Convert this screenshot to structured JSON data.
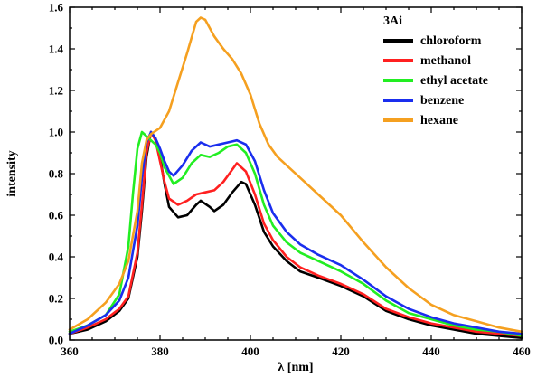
{
  "chart_data": {
    "type": "line",
    "title": "",
    "xlabel": "λ [nm]",
    "ylabel": "intensity",
    "xlim": [
      360,
      460
    ],
    "ylim": [
      0.0,
      1.6
    ],
    "x_ticks": [
      "360",
      "380",
      "400",
      "420",
      "440",
      "460"
    ],
    "y_ticks": [
      "0.0",
      "0.2",
      "0.4",
      "0.6",
      "0.8",
      "1.0",
      "1.2",
      "1.4",
      "1.6"
    ],
    "legend_title": "3Ai",
    "legend_position": "top-right",
    "grid": false,
    "series": [
      {
        "name": "chloroform",
        "color": "#000000",
        "points": [
          [
            360,
            0.03
          ],
          [
            364,
            0.05
          ],
          [
            368,
            0.09
          ],
          [
            371,
            0.14
          ],
          [
            373,
            0.2
          ],
          [
            375,
            0.4
          ],
          [
            376,
            0.62
          ],
          [
            377,
            0.88
          ],
          [
            378,
            1.0
          ],
          [
            379,
            0.97
          ],
          [
            380,
            0.88
          ],
          [
            381,
            0.75
          ],
          [
            382,
            0.64
          ],
          [
            384,
            0.59
          ],
          [
            386,
            0.6
          ],
          [
            388,
            0.65
          ],
          [
            389,
            0.67
          ],
          [
            391,
            0.64
          ],
          [
            392,
            0.62
          ],
          [
            394,
            0.65
          ],
          [
            396,
            0.71
          ],
          [
            398,
            0.76
          ],
          [
            399,
            0.75
          ],
          [
            401,
            0.65
          ],
          [
            403,
            0.52
          ],
          [
            405,
            0.45
          ],
          [
            408,
            0.38
          ],
          [
            411,
            0.33
          ],
          [
            415,
            0.3
          ],
          [
            420,
            0.26
          ],
          [
            425,
            0.21
          ],
          [
            430,
            0.14
          ],
          [
            435,
            0.1
          ],
          [
            440,
            0.07
          ],
          [
            445,
            0.05
          ],
          [
            450,
            0.03
          ],
          [
            455,
            0.02
          ],
          [
            460,
            0.01
          ]
        ]
      },
      {
        "name": "methanol",
        "color": "#ff2020",
        "points": [
          [
            360,
            0.03
          ],
          [
            364,
            0.06
          ],
          [
            368,
            0.1
          ],
          [
            371,
            0.15
          ],
          [
            373,
            0.21
          ],
          [
            375,
            0.42
          ],
          [
            376,
            0.65
          ],
          [
            377,
            0.9
          ],
          [
            378,
            1.0
          ],
          [
            379,
            0.96
          ],
          [
            380,
            0.86
          ],
          [
            381,
            0.76
          ],
          [
            382,
            0.68
          ],
          [
            384,
            0.65
          ],
          [
            386,
            0.67
          ],
          [
            388,
            0.7
          ],
          [
            390,
            0.71
          ],
          [
            392,
            0.72
          ],
          [
            394,
            0.76
          ],
          [
            396,
            0.82
          ],
          [
            397,
            0.85
          ],
          [
            399,
            0.81
          ],
          [
            401,
            0.7
          ],
          [
            403,
            0.56
          ],
          [
            405,
            0.48
          ],
          [
            408,
            0.4
          ],
          [
            411,
            0.35
          ],
          [
            415,
            0.31
          ],
          [
            420,
            0.27
          ],
          [
            425,
            0.22
          ],
          [
            430,
            0.15
          ],
          [
            435,
            0.11
          ],
          [
            440,
            0.08
          ],
          [
            445,
            0.06
          ],
          [
            450,
            0.04
          ],
          [
            455,
            0.03
          ],
          [
            460,
            0.02
          ]
        ]
      },
      {
        "name": "ethyl acetate",
        "color": "#22ee22",
        "points": [
          [
            360,
            0.04
          ],
          [
            364,
            0.07
          ],
          [
            368,
            0.12
          ],
          [
            371,
            0.22
          ],
          [
            373,
            0.45
          ],
          [
            374,
            0.7
          ],
          [
            375,
            0.92
          ],
          [
            376,
            1.0
          ],
          [
            377,
            0.98
          ],
          [
            378,
            0.96
          ],
          [
            379,
            0.94
          ],
          [
            380,
            0.9
          ],
          [
            381,
            0.83
          ],
          [
            383,
            0.75
          ],
          [
            385,
            0.78
          ],
          [
            387,
            0.85
          ],
          [
            389,
            0.89
          ],
          [
            391,
            0.88
          ],
          [
            393,
            0.9
          ],
          [
            395,
            0.93
          ],
          [
            397,
            0.94
          ],
          [
            399,
            0.9
          ],
          [
            401,
            0.8
          ],
          [
            403,
            0.65
          ],
          [
            405,
            0.55
          ],
          [
            408,
            0.47
          ],
          [
            411,
            0.42
          ],
          [
            415,
            0.38
          ],
          [
            420,
            0.33
          ],
          [
            425,
            0.27
          ],
          [
            430,
            0.19
          ],
          [
            435,
            0.13
          ],
          [
            440,
            0.1
          ],
          [
            445,
            0.07
          ],
          [
            450,
            0.05
          ],
          [
            455,
            0.04
          ],
          [
            460,
            0.02
          ]
        ]
      },
      {
        "name": "benzene",
        "color": "#1a2eee",
        "points": [
          [
            360,
            0.03
          ],
          [
            364,
            0.07
          ],
          [
            368,
            0.12
          ],
          [
            371,
            0.19
          ],
          [
            373,
            0.3
          ],
          [
            375,
            0.55
          ],
          [
            376,
            0.78
          ],
          [
            377,
            0.95
          ],
          [
            378,
            1.0
          ],
          [
            379,
            0.97
          ],
          [
            380,
            0.92
          ],
          [
            381,
            0.86
          ],
          [
            382,
            0.81
          ],
          [
            383,
            0.79
          ],
          [
            385,
            0.84
          ],
          [
            387,
            0.91
          ],
          [
            389,
            0.95
          ],
          [
            391,
            0.93
          ],
          [
            393,
            0.94
          ],
          [
            395,
            0.95
          ],
          [
            397,
            0.96
          ],
          [
            399,
            0.94
          ],
          [
            401,
            0.86
          ],
          [
            403,
            0.72
          ],
          [
            405,
            0.61
          ],
          [
            408,
            0.52
          ],
          [
            411,
            0.46
          ],
          [
            415,
            0.41
          ],
          [
            420,
            0.36
          ],
          [
            425,
            0.29
          ],
          [
            430,
            0.21
          ],
          [
            435,
            0.15
          ],
          [
            440,
            0.11
          ],
          [
            445,
            0.08
          ],
          [
            450,
            0.06
          ],
          [
            455,
            0.04
          ],
          [
            460,
            0.03
          ]
        ]
      },
      {
        "name": "hexane",
        "color": "#f5a020",
        "points": [
          [
            360,
            0.05
          ],
          [
            364,
            0.1
          ],
          [
            368,
            0.18
          ],
          [
            371,
            0.27
          ],
          [
            373,
            0.38
          ],
          [
            375,
            0.62
          ],
          [
            376,
            0.85
          ],
          [
            377,
            0.96
          ],
          [
            378,
            0.99
          ],
          [
            380,
            1.02
          ],
          [
            382,
            1.1
          ],
          [
            384,
            1.24
          ],
          [
            386,
            1.38
          ],
          [
            388,
            1.53
          ],
          [
            389,
            1.55
          ],
          [
            390,
            1.54
          ],
          [
            391,
            1.5
          ],
          [
            392,
            1.46
          ],
          [
            394,
            1.4
          ],
          [
            396,
            1.35
          ],
          [
            398,
            1.28
          ],
          [
            400,
            1.18
          ],
          [
            402,
            1.04
          ],
          [
            404,
            0.94
          ],
          [
            406,
            0.88
          ],
          [
            408,
            0.84
          ],
          [
            411,
            0.78
          ],
          [
            415,
            0.7
          ],
          [
            420,
            0.6
          ],
          [
            425,
            0.47
          ],
          [
            430,
            0.35
          ],
          [
            435,
            0.25
          ],
          [
            440,
            0.17
          ],
          [
            445,
            0.12
          ],
          [
            450,
            0.09
          ],
          [
            455,
            0.06
          ],
          [
            460,
            0.04
          ]
        ]
      }
    ]
  }
}
